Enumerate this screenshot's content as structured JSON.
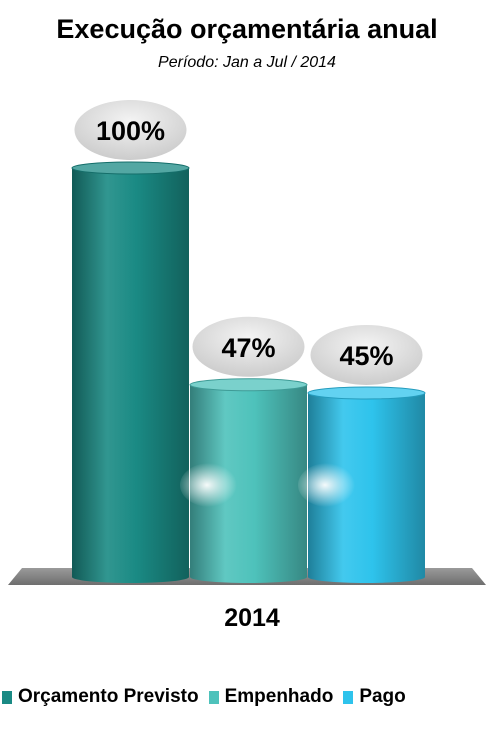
{
  "chart_data": {
    "type": "bar",
    "title": "Execução orçamentária anual",
    "subtitle": "Período: Jan a Jul  / 2014",
    "categories": [
      "2014"
    ],
    "series": [
      {
        "name": "Orçamento Previsto",
        "values": [
          100
        ],
        "label": "100%",
        "color": "#1a8a84"
      },
      {
        "name": "Empenhado",
        "values": [
          47
        ],
        "label": "47%",
        "color": "#4ec2bb"
      },
      {
        "name": "Pago",
        "values": [
          45
        ],
        "label": "45%",
        "color": "#2ec3ec"
      }
    ],
    "ylim": [
      0,
      100
    ],
    "legend_position": "bottom",
    "grid": false
  }
}
